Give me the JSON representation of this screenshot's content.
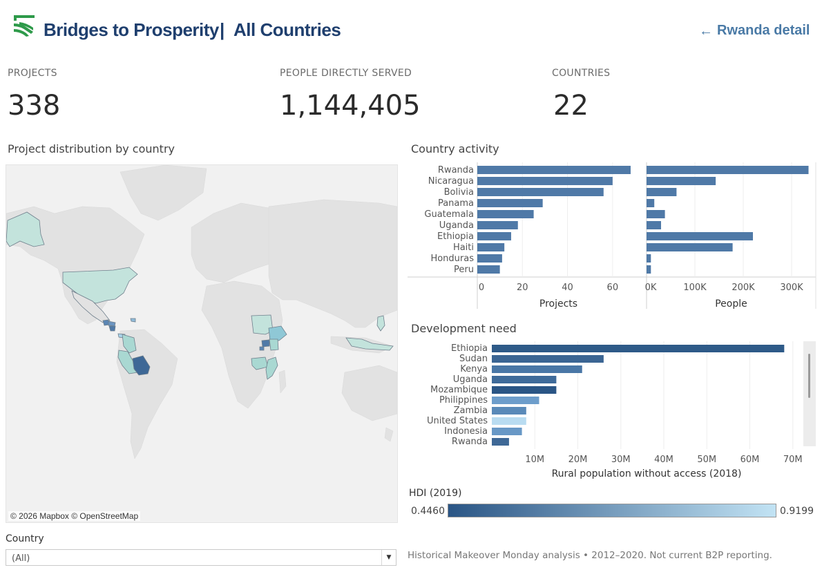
{
  "header": {
    "brand": "Bridges to Prosperity",
    "separator": "|",
    "page_title": "All Countries",
    "nav_link": "Rwanda detail",
    "brand_color": "#2e9a4a",
    "title_color": "#1f3f6e"
  },
  "kpis": [
    {
      "label": "PROJECTS",
      "value": "338"
    },
    {
      "label": "PEOPLE DIRECTLY SERVED",
      "value": "1,144,405"
    },
    {
      "label": "COUNTRIES",
      "value": "22"
    }
  ],
  "map": {
    "title": "Project distribution by country",
    "credit": "© 2026 Mapbox © OpenStreetMap"
  },
  "filter": {
    "label": "Country",
    "value": "(All)"
  },
  "footnote": "Historical Makeover Monday analysis • 2012–2020. Not current B2P reporting.",
  "chart_data": [
    {
      "type": "bar",
      "orientation": "horizontal",
      "title": "Country activity",
      "categories": [
        "Rwanda",
        "Nicaragua",
        "Bolivia",
        "Panama",
        "Guatemala",
        "Uganda",
        "Ethiopia",
        "Haiti",
        "Honduras",
        "Peru"
      ],
      "panels": [
        {
          "name": "Projects",
          "xlabel": "Projects",
          "values": [
            68,
            60,
            56,
            29,
            25,
            18,
            15,
            12,
            11,
            10
          ],
          "xlim": [
            0,
            72
          ],
          "ticks": [
            0,
            20,
            40,
            60
          ],
          "tick_labels": [
            "0",
            "20",
            "40",
            "60"
          ]
        },
        {
          "name": "People",
          "xlabel": "People",
          "values": [
            335000,
            143000,
            62000,
            16000,
            38000,
            30000,
            220000,
            178000,
            9000,
            9000
          ],
          "xlim": [
            0,
            350000
          ],
          "ticks": [
            0,
            100000,
            200000,
            300000
          ],
          "tick_labels": [
            "0K",
            "100K",
            "200K",
            "300K"
          ]
        }
      ],
      "bar_color": "#4f79a7",
      "grid": true
    },
    {
      "type": "bar",
      "orientation": "horizontal",
      "title": "Development need",
      "categories": [
        "Ethiopia",
        "Sudan",
        "Kenya",
        "Uganda",
        "Mozambique",
        "Philippines",
        "Zambia",
        "United States",
        "Indonesia",
        "Rwanda"
      ],
      "values": [
        68000000,
        26000000,
        21000000,
        15000000,
        15000000,
        11000000,
        8000000,
        8000000,
        7000000,
        4000000
      ],
      "colors": [
        "#2e5a88",
        "#3b6593",
        "#4a77a6",
        "#3f6b9a",
        "#2a5585",
        "#6d9dcb",
        "#5a8ab9",
        "#b9dcf1",
        "#6898c6",
        "#3e6896"
      ],
      "xlabel": "Rural population without access (2018)",
      "xlim": [
        0,
        71000000
      ],
      "ticks": [
        10000000,
        20000000,
        30000000,
        40000000,
        50000000,
        60000000,
        70000000
      ],
      "tick_labels": [
        "10M",
        "20M",
        "30M",
        "40M",
        "50M",
        "60M",
        "70M"
      ],
      "grid": true
    }
  ],
  "legend": {
    "title": "HDI (2019)",
    "min_label": "0.4460",
    "max_label": "0.9199",
    "color_low": "#2a5585",
    "color_high": "#c2e3f4"
  }
}
